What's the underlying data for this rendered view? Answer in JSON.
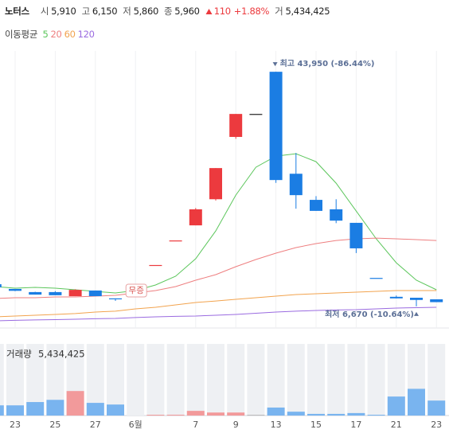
{
  "chart_data": {
    "type": "candlestick",
    "header": {
      "name": "노터스",
      "open_label": "시",
      "open": "5,910",
      "high_label": "고",
      "high": "6,150",
      "low_label": "저",
      "low": "5,860",
      "close_label": "종",
      "close": "5,960",
      "change": "110",
      "change_pct": "+1.88%",
      "volume_label": "거",
      "volume": "5,434,425"
    },
    "ma_label": "이동평균",
    "categories": [
      null,
      "23",
      null,
      "25",
      null,
      "27",
      null,
      "6월",
      null,
      null,
      "7",
      null,
      "9",
      null,
      "13",
      null,
      "15",
      null,
      "17",
      null,
      "21",
      null,
      "23"
    ],
    "open": [
      10200,
      9450,
      8950,
      8950,
      8300,
      9200,
      7950,
      null,
      13250,
      17150,
      19550,
      23700,
      33600,
      37250,
      43950,
      27750,
      23600,
      22100,
      19950,
      11200,
      8200,
      8050,
      7800
    ],
    "high": [
      10200,
      9450,
      9000,
      9100,
      9400,
      9200,
      7950,
      null,
      13250,
      17150,
      22300,
      28650,
      37250,
      37250,
      43950,
      31050,
      24200,
      23700,
      19950,
      11200,
      8400,
      8050,
      7800
    ],
    "low": [
      9700,
      9100,
      8550,
      8450,
      8300,
      8300,
      7550,
      null,
      13250,
      17150,
      19550,
      23500,
      33300,
      37250,
      26300,
      22200,
      21850,
      19900,
      15150,
      11200,
      7950,
      6670,
      7350
    ],
    "close": [
      9700,
      9150,
      8550,
      8450,
      9300,
      8300,
      7800,
      null,
      13250,
      17150,
      22100,
      28650,
      37250,
      37250,
      26750,
      24350,
      21850,
      20300,
      15900,
      11200,
      7950,
      7700,
      7350
    ],
    "up_color": "#ec3a3e",
    "down_color": "#1b7de3",
    "flat_color": "#222222",
    "ylim": [
      3500,
      46500
    ],
    "ma_series": [
      {
        "name": "5",
        "color": "#5cc65c",
        "values": [
          9820,
          9570,
          9700,
          9570,
          9320,
          9060,
          8810,
          9190,
          10080,
          11470,
          14250,
          18670,
          24360,
          28780,
          30550,
          30930,
          29670,
          26250,
          21830,
          17410,
          13610,
          10830,
          9320
        ]
      },
      {
        "name": "20",
        "color": "#ee7f80",
        "values": [
          7930,
          8050,
          8050,
          8180,
          8180,
          8310,
          8430,
          8810,
          9190,
          9820,
          10830,
          11720,
          12980,
          14120,
          15130,
          16020,
          16650,
          17150,
          17410,
          17530,
          17410,
          17280,
          17150
        ]
      },
      {
        "name": "60",
        "color": "#f2a34e",
        "values": [
          5020,
          5150,
          5270,
          5400,
          5530,
          5780,
          5910,
          6280,
          6540,
          6910,
          7290,
          7540,
          7800,
          8050,
          8300,
          8560,
          8680,
          8810,
          8940,
          9060,
          9190,
          9190,
          9190
        ]
      },
      {
        "name": "120",
        "color": "#9a6be0",
        "values": [
          4390,
          4460,
          4520,
          4580,
          4640,
          4710,
          4770,
          4900,
          5020,
          5090,
          5150,
          5270,
          5400,
          5590,
          5780,
          5910,
          6030,
          6100,
          6160,
          6280,
          6410,
          6470,
          6540
        ]
      }
    ],
    "high_annotation": "최고 43,950 (-86.44%)",
    "low_annotation": "최저 6,670 (-10.64%)",
    "halt_label": "무증",
    "volume": {
      "title": "거래량",
      "title_value": "5,434,425",
      "values": [
        3700000,
        3700000,
        4900000,
        5700000,
        8900000,
        4600000,
        4000000,
        null,
        100000,
        300000,
        1700000,
        1100000,
        1100000,
        100000,
        2900000,
        1400000,
        600000,
        600000,
        900000,
        200000,
        6900000,
        9700000,
        5434425
      ],
      "ylim": [
        0,
        26000000
      ],
      "up_color": "#f29a9b",
      "down_color": "#79b4ef",
      "flat_color": "#bbbbbb"
    }
  }
}
